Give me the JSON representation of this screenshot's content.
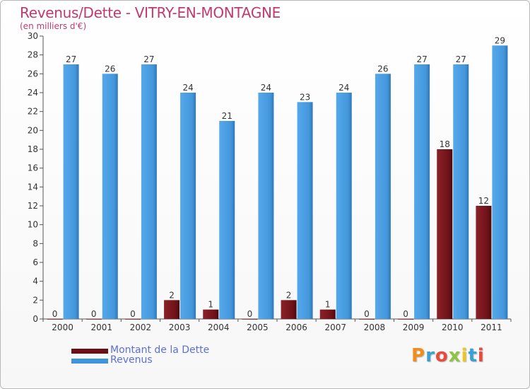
{
  "title": "Revenus/Dette - VITRY-EN-MONTAGNE",
  "subtitle": "(en milliers d'€)",
  "colors": {
    "dette": "#7b1a20",
    "revenus": "#4a9de0",
    "title": "#c03a6e",
    "legend_text": "#5d6fd8",
    "axis_text": "#333333"
  },
  "legend": [
    {
      "label": "Montant de la Dette",
      "color": "#6b0f14"
    },
    {
      "label": "Revenus",
      "color": "#3f95dc"
    }
  ],
  "logo": {
    "text": "Proxiti",
    "colors": [
      "#f28c1e",
      "#3aa0d8",
      "#e84b3c",
      "#8cc63f",
      "#f2c41e",
      "#3aa0d8",
      "#e84b3c"
    ]
  },
  "chart_data": {
    "type": "bar",
    "title": "Revenus/Dette - VITRY-EN-MONTAGNE",
    "subtitle": "(en milliers d'€)",
    "categories": [
      "2000",
      "2001",
      "2002",
      "2003",
      "2004",
      "2005",
      "2006",
      "2007",
      "2008",
      "2009",
      "2010",
      "2011"
    ],
    "series": [
      {
        "name": "Montant de la Dette",
        "values": [
          0,
          0,
          0,
          2,
          1,
          0,
          2,
          1,
          0,
          0,
          18,
          12
        ]
      },
      {
        "name": "Revenus",
        "values": [
          27,
          26,
          27,
          24,
          21,
          24,
          23,
          24,
          26,
          27,
          27,
          29
        ]
      }
    ],
    "ylim": [
      0,
      30
    ],
    "yticks": [
      0,
      2,
      4,
      6,
      8,
      10,
      12,
      14,
      16,
      18,
      20,
      22,
      24,
      26,
      28,
      30
    ],
    "grid": false,
    "legend_position": "bottom-left",
    "data_labels": true
  }
}
